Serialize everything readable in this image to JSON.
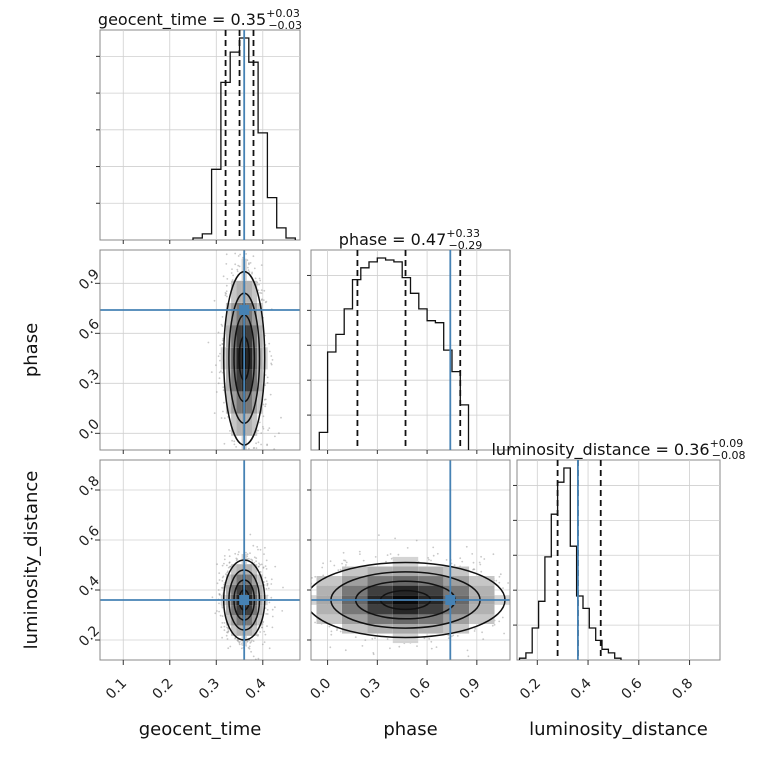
{
  "chart_data": {
    "type": "corner",
    "truths": {
      "geocent_time": 0.36,
      "phase": 0.74,
      "luminosity_distance": 0.36
    },
    "truth_color": "#4682b4",
    "params": [
      {
        "name": "geocent_time",
        "xlabel": "geocent_time",
        "title_text": "geocent_time = 0.35",
        "plus": "+0.03",
        "minus": "−0.03",
        "quantiles": [
          0.32,
          0.35,
          0.38
        ],
        "range": [
          0.05,
          0.48
        ],
        "ticks": [
          0.1,
          0.2,
          0.3,
          0.4
        ],
        "ticklabels": [
          "0.1",
          "0.2",
          "0.3",
          "0.4"
        ]
      },
      {
        "name": "phase",
        "xlabel": "phase",
        "title_text": "phase = 0.47",
        "plus": "+0.33",
        "minus": "−0.29",
        "quantiles": [
          0.18,
          0.47,
          0.8
        ],
        "range": [
          -0.1,
          1.1
        ],
        "ticks": [
          0.0,
          0.3,
          0.6,
          0.9
        ],
        "ticklabels": [
          "0.0",
          "0.3",
          "0.6",
          "0.9"
        ]
      },
      {
        "name": "luminosity_distance",
        "xlabel": "luminosity_distance",
        "title_text": "luminosity_distance = 0.36",
        "plus": "+0.09",
        "minus": "−0.08",
        "quantiles": [
          0.28,
          0.36,
          0.45
        ],
        "range": [
          0.12,
          0.92
        ],
        "ticks": [
          0.2,
          0.4,
          0.6,
          0.8
        ],
        "ticklabels": [
          "0.2",
          "0.4",
          "0.6",
          "0.8"
        ]
      }
    ],
    "histograms": [
      {
        "param": "geocent_time",
        "bin_edges_start": 0.25,
        "bin_width": 0.02,
        "counts": [
          0.01,
          0.03,
          0.35,
          0.78,
          0.93,
          1.0,
          0.88,
          0.53,
          0.21,
          0.06,
          0.01
        ]
      },
      {
        "param": "phase",
        "bin_edges_start": -0.05,
        "bin_width": 0.05,
        "counts": [
          0.09,
          0.5,
          0.59,
          0.72,
          0.87,
          0.93,
          0.96,
          0.98,
          0.97,
          0.96,
          0.88,
          0.8,
          0.72,
          0.66,
          0.65,
          0.51,
          0.4,
          0.23
        ]
      },
      {
        "param": "luminosity_distance",
        "bin_edges_start": 0.13,
        "bin_width": 0.025,
        "counts": [
          0.01,
          0.04,
          0.18,
          0.33,
          0.58,
          0.82,
          1.0,
          1.08,
          0.64,
          0.36,
          0.29,
          0.18,
          0.11,
          0.06,
          0.04,
          0.01
        ]
      }
    ],
    "contours_2d": [
      {
        "x": "geocent_time",
        "y": "phase",
        "center": [
          0.36,
          0.45
        ],
        "sigma": [
          0.022,
          0.26
        ]
      },
      {
        "x": "geocent_time",
        "y": "luminosity_distance",
        "center": [
          0.36,
          0.36
        ],
        "sigma": [
          0.022,
          0.08
        ]
      },
      {
        "x": "phase",
        "y": "luminosity_distance",
        "center": [
          0.47,
          0.36
        ],
        "sigma": [
          0.3,
          0.075
        ]
      }
    ],
    "grid": true
  }
}
